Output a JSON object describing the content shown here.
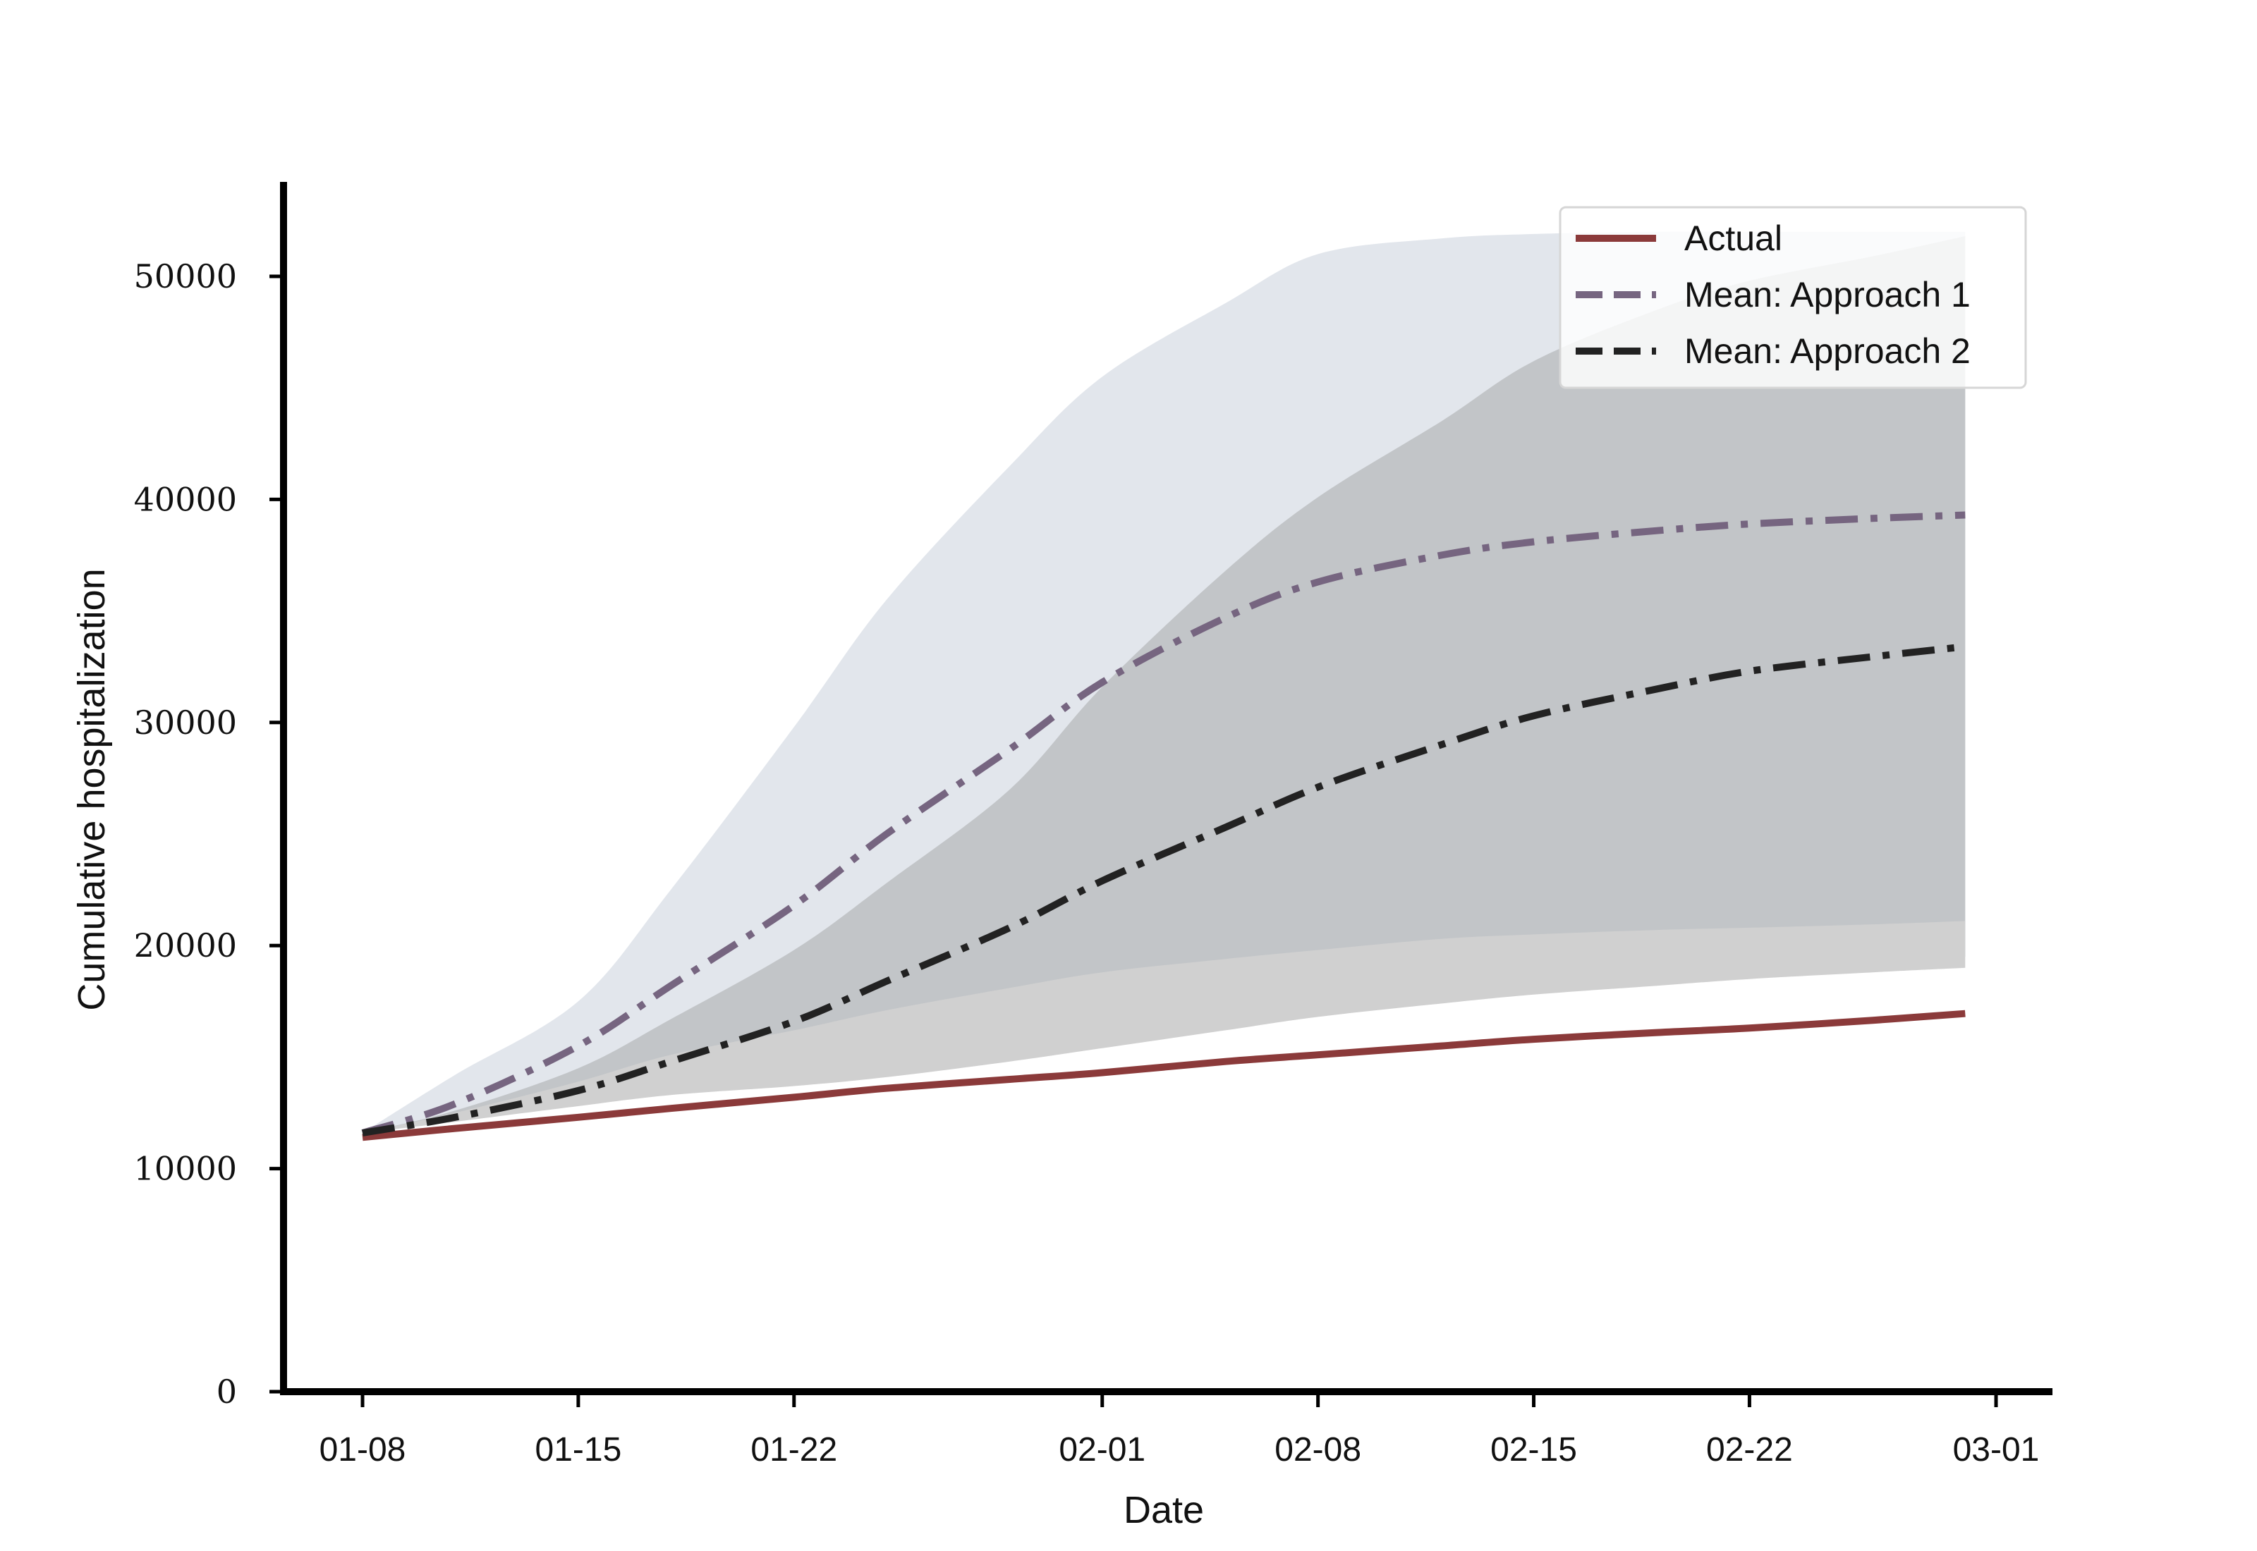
{
  "chart_data": {
    "type": "line",
    "xlabel": "Date",
    "ylabel": "Cumulative hospitalization",
    "ylim": [
      0,
      54000
    ],
    "x_ticks": [
      "01-08",
      "01-15",
      "01-22",
      "02-01",
      "02-08",
      "02-15",
      "02-22",
      "03-01"
    ],
    "y_ticks": [
      "0",
      "10000",
      "20000",
      "30000",
      "40000",
      "50000"
    ],
    "legend_position": "top-right",
    "grid": false,
    "x": [
      "01-08",
      "01-11",
      "01-15",
      "01-18",
      "01-22",
      "01-25",
      "01-29",
      "02-01",
      "02-05",
      "02-08",
      "02-12",
      "02-15",
      "02-19",
      "02-22",
      "02-26",
      "02-29"
    ],
    "series": [
      {
        "name": "Actual",
        "style": "solid",
        "color": "#8b3a3a",
        "values": [
          11400,
          11800,
          12300,
          12700,
          13200,
          13600,
          14000,
          14300,
          14800,
          15100,
          15500,
          15800,
          16100,
          16300,
          16650,
          16950
        ]
      },
      {
        "name": "Mean: Approach 1",
        "style": "dashdot",
        "color": "#766580",
        "values": [
          11600,
          12900,
          15500,
          18200,
          21800,
          25000,
          28800,
          31800,
          34700,
          36300,
          37500,
          38100,
          38600,
          38900,
          39150,
          39300
        ]
      },
      {
        "name": "Mean: Approach 2",
        "style": "dashdot",
        "color": "#222222",
        "values": [
          11600,
          12300,
          13500,
          14800,
          16600,
          18400,
          20800,
          22900,
          25300,
          27100,
          29000,
          30300,
          31500,
          32300,
          32950,
          33400
        ]
      }
    ],
    "bands": [
      {
        "color": "#e2e6ec",
        "lower": [
          11600,
          12300,
          13400,
          14000,
          14700,
          15300,
          16100,
          16700,
          17400,
          17900,
          18400,
          18700,
          19000,
          19200,
          19400,
          19500
        ],
        "upper": [
          11600,
          14200,
          17500,
          22500,
          29800,
          35500,
          41500,
          45500,
          48800,
          51000,
          51700,
          51900,
          52000,
          52000,
          52000,
          52000
        ]
      },
      {
        "color": "#c2c5c8",
        "lower": [
          11600,
          12300,
          13400,
          14000,
          14700,
          15300,
          16100,
          16700,
          17400,
          17900,
          18400,
          18700,
          19000,
          19200,
          19400,
          19500
        ],
        "upper": [
          11600,
          12600,
          14500,
          16700,
          19800,
          22800,
          27000,
          31600,
          36800,
          40100,
          43500,
          46200,
          48500,
          49800,
          50900,
          51800
        ]
      },
      {
        "color": "#d0d0d0",
        "lower": [
          11600,
          12100,
          12800,
          13300,
          13700,
          14100,
          14800,
          15400,
          16200,
          16800,
          17400,
          17800,
          18200,
          18500,
          18800,
          19000
        ],
        "upper": [
          11600,
          12500,
          13900,
          15100,
          16200,
          17100,
          18100,
          18800,
          19400,
          19800,
          20300,
          20500,
          20700,
          20800,
          20950,
          21100
        ]
      }
    ]
  }
}
